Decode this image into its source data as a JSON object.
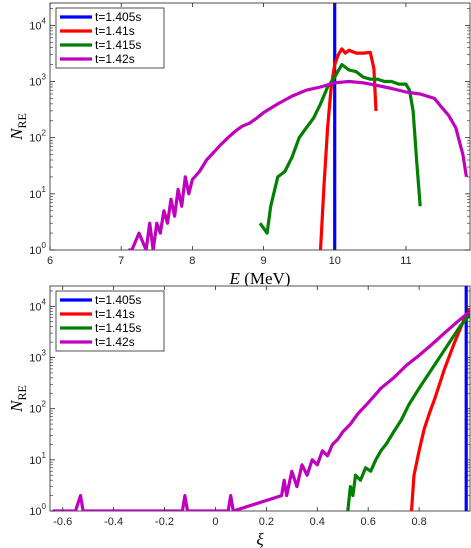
{
  "chart_data": [
    {
      "type": "line",
      "xlabel": "E (MeV)",
      "ylabel": "N_RE",
      "xlim": [
        6,
        11.9
      ],
      "ylim": [
        1,
        25000
      ],
      "yscale": "log",
      "xticks": [
        "6",
        "7",
        "8",
        "9",
        "10",
        "11"
      ],
      "yticks": [
        "10^0",
        "10^1",
        "10^2",
        "10^3",
        "10^4"
      ],
      "grid": false,
      "legend_position": "top-left",
      "series": [
        {
          "name": "t=1.405s",
          "color": "#0000ff",
          "x": [
            10.0,
            10.0
          ],
          "y": [
            1,
            25000
          ]
        },
        {
          "name": "t=1.41s",
          "color": "#ff0000",
          "x": [
            9.8,
            9.85,
            9.9,
            9.95,
            10.0,
            10.05,
            10.1,
            10.15,
            10.2,
            10.3,
            10.4,
            10.5,
            10.55,
            10.58
          ],
          "y": [
            1,
            15,
            150,
            800,
            2000,
            3000,
            3800,
            3200,
            3600,
            3200,
            3200,
            3300,
            1700,
            300
          ]
        },
        {
          "name": "t=1.415s",
          "color": "#008000",
          "x": [
            8.95,
            9.05,
            9.1,
            9.2,
            9.3,
            9.4,
            9.5,
            9.6,
            9.7,
            9.8,
            9.9,
            10.0,
            10.1,
            10.2,
            10.3,
            10.4,
            10.5,
            10.6,
            10.7,
            10.8,
            10.9,
            11.0,
            11.05,
            11.1,
            11.15,
            11.2
          ],
          "y": [
            3,
            2,
            6,
            20,
            25,
            45,
            100,
            150,
            220,
            400,
            800,
            1200,
            2000,
            1600,
            1500,
            1200,
            1100,
            1100,
            1000,
            1000,
            900,
            900,
            700,
            300,
            40,
            6
          ]
        },
        {
          "name": "t=1.42s",
          "color": "#bf00bf",
          "x": [
            7.1,
            7.15,
            7.25,
            7.35,
            7.4,
            7.45,
            7.5,
            7.55,
            7.6,
            7.65,
            7.7,
            7.75,
            7.8,
            7.85,
            7.9,
            7.95,
            8.0,
            8.1,
            8.2,
            8.3,
            8.4,
            8.5,
            8.6,
            8.7,
            8.8,
            8.9,
            9.0,
            9.2,
            9.4,
            9.6,
            9.8,
            10.0,
            10.2,
            10.4,
            10.6,
            10.8,
            11.0,
            11.2,
            11.4,
            11.5,
            11.6,
            11.7,
            11.8,
            11.85
          ],
          "y": [
            1,
            1,
            2,
            1,
            3,
            1,
            3,
            2,
            5,
            3,
            8,
            4,
            12,
            6,
            20,
            10,
            18,
            25,
            40,
            55,
            75,
            100,
            130,
            160,
            180,
            220,
            280,
            400,
            550,
            700,
            800,
            950,
            1000,
            950,
            850,
            750,
            650,
            600,
            500,
            350,
            250,
            150,
            50,
            20
          ]
        }
      ]
    },
    {
      "type": "line",
      "xlabel": "ξ",
      "ylabel": "N_RE",
      "xlim": [
        -0.65,
        1.0
      ],
      "ylim": [
        1,
        25000
      ],
      "yscale": "log",
      "xticks": [
        "-0.6",
        "-0.4",
        "-0.2",
        "0",
        "0.2",
        "0.4",
        "0.6",
        "0.8"
      ],
      "yticks": [
        "10^0",
        "10^1",
        "10^2",
        "10^3",
        "10^4"
      ],
      "grid": false,
      "legend_position": "top-left",
      "series": [
        {
          "name": "t=1.405s",
          "color": "#0000ff",
          "x": [
            0.985,
            0.985
          ],
          "y": [
            1,
            25000
          ]
        },
        {
          "name": "t=1.41s",
          "color": "#ff0000",
          "x": [
            0.77,
            0.78,
            0.8,
            0.82,
            0.84,
            0.86,
            0.88,
            0.9,
            0.92,
            0.94,
            0.96,
            0.98,
            1.0
          ],
          "y": [
            1,
            5,
            15,
            40,
            80,
            150,
            300,
            600,
            1100,
            2000,
            3500,
            6000,
            9000
          ]
        },
        {
          "name": "t=1.415s",
          "color": "#008000",
          "x": [
            0.52,
            0.53,
            0.54,
            0.55,
            0.57,
            0.59,
            0.61,
            0.63,
            0.65,
            0.67,
            0.7,
            0.73,
            0.76,
            0.8,
            0.84,
            0.88,
            0.92,
            0.96,
            1.0
          ],
          "y": [
            1,
            3,
            2,
            5,
            4,
            7,
            6,
            10,
            15,
            20,
            35,
            60,
            120,
            250,
            500,
            1000,
            2000,
            4000,
            7000
          ]
        },
        {
          "name": "t=1.42s",
          "color": "#bf00bf",
          "x": [
            -0.64,
            -0.62,
            -0.6,
            -0.55,
            -0.53,
            -0.52,
            -0.13,
            -0.12,
            -0.11,
            0.05,
            0.06,
            0.07,
            0.26,
            0.27,
            0.28,
            0.3,
            0.32,
            0.34,
            0.36,
            0.38,
            0.4,
            0.42,
            0.44,
            0.46,
            0.48,
            0.5,
            0.53,
            0.56,
            0.6,
            0.65,
            0.7,
            0.75,
            0.8,
            0.85,
            0.9,
            0.95,
            1.0
          ],
          "y": [
            1,
            1,
            1,
            1,
            2,
            1,
            1,
            2,
            1,
            1,
            2,
            1,
            2,
            4,
            2,
            6,
            3,
            8,
            5,
            10,
            8,
            15,
            12,
            20,
            25,
            35,
            50,
            80,
            130,
            250,
            400,
            700,
            1100,
            1800,
            3000,
            5000,
            8000
          ]
        }
      ]
    }
  ]
}
